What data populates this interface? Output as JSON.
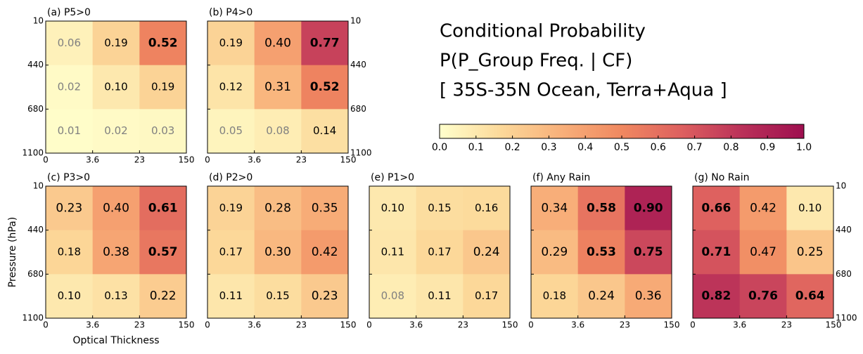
{
  "chart_data": [
    {
      "type": "heatmap",
      "title": "(a) P5>0",
      "xbins": [
        0,
        3.6,
        23,
        150
      ],
      "ybins": [
        10,
        440,
        680,
        1100
      ],
      "ytick_side": "left",
      "values": [
        [
          0.06,
          0.19,
          0.52
        ],
        [
          0.02,
          0.1,
          0.19
        ],
        [
          0.01,
          0.02,
          0.03
        ]
      ],
      "value_labels": [
        [
          "0.06",
          "0.19",
          "0.52"
        ],
        [
          "0.02",
          "0.10",
          "0.19"
        ],
        [
          "0.01",
          "0.02",
          "0.03"
        ]
      ]
    },
    {
      "type": "heatmap",
      "title": "(b) P4>0",
      "xbins": [
        0,
        3.6,
        23,
        150
      ],
      "ybins": [
        10,
        440,
        680,
        1100
      ],
      "ytick_side": "right",
      "values": [
        [
          0.19,
          0.4,
          0.77
        ],
        [
          0.12,
          0.31,
          0.52
        ],
        [
          0.05,
          0.08,
          0.14
        ]
      ],
      "value_labels": [
        [
          "0.19",
          "0.40",
          "0.77"
        ],
        [
          "0.12",
          "0.31",
          "0.52"
        ],
        [
          "0.05",
          "0.08",
          "0.14"
        ]
      ]
    },
    {
      "type": "heatmap",
      "title": "(c) P3>0",
      "xbins": [
        0,
        3.6,
        23,
        150
      ],
      "ybins": [
        10,
        440,
        680,
        1100
      ],
      "ytick_side": "left",
      "xlabel": "Optical Thickness",
      "ylabel": "Pressure (hPa)",
      "values": [
        [
          0.23,
          0.4,
          0.61
        ],
        [
          0.18,
          0.38,
          0.57
        ],
        [
          0.1,
          0.13,
          0.22
        ]
      ],
      "value_labels": [
        [
          "0.23",
          "0.40",
          "0.61"
        ],
        [
          "0.18",
          "0.38",
          "0.57"
        ],
        [
          "0.10",
          "0.13",
          "0.22"
        ]
      ]
    },
    {
      "type": "heatmap",
      "title": "(d) P2>0",
      "xbins": [
        0,
        3.6,
        23,
        150
      ],
      "ybins": [
        10,
        440,
        680,
        1100
      ],
      "ytick_side": "none",
      "values": [
        [
          0.19,
          0.28,
          0.35
        ],
        [
          0.17,
          0.3,
          0.42
        ],
        [
          0.11,
          0.15,
          0.23
        ]
      ],
      "value_labels": [
        [
          "0.19",
          "0.28",
          "0.35"
        ],
        [
          "0.17",
          "0.30",
          "0.42"
        ],
        [
          "0.11",
          "0.15",
          "0.23"
        ]
      ]
    },
    {
      "type": "heatmap",
      "title": "(e) P1>0",
      "xbins": [
        0,
        3.6,
        23,
        150
      ],
      "ybins": [
        10,
        440,
        680,
        1100
      ],
      "ytick_side": "none",
      "values": [
        [
          0.1,
          0.15,
          0.16
        ],
        [
          0.11,
          0.17,
          0.24
        ],
        [
          0.08,
          0.11,
          0.17
        ]
      ],
      "value_labels": [
        [
          "0.10",
          "0.15",
          "0.16"
        ],
        [
          "0.11",
          "0.17",
          "0.24"
        ],
        [
          "0.08",
          "0.11",
          "0.17"
        ]
      ]
    },
    {
      "type": "heatmap",
      "title": "(f) Any Rain",
      "xbins": [
        0,
        3.6,
        23,
        150
      ],
      "ybins": [
        10,
        440,
        680,
        1100
      ],
      "ytick_side": "none",
      "values": [
        [
          0.34,
          0.58,
          0.9
        ],
        [
          0.29,
          0.53,
          0.75
        ],
        [
          0.18,
          0.24,
          0.36
        ]
      ],
      "value_labels": [
        [
          "0.34",
          "0.58",
          "0.90"
        ],
        [
          "0.29",
          "0.53",
          "0.75"
        ],
        [
          "0.18",
          "0.24",
          "0.36"
        ]
      ]
    },
    {
      "type": "heatmap",
      "title": "(g) No Rain",
      "xbins": [
        0,
        3.6,
        23,
        150
      ],
      "ybins": [
        10,
        440,
        680,
        1100
      ],
      "ytick_side": "right",
      "values": [
        [
          0.66,
          0.42,
          0.1
        ],
        [
          0.71,
          0.47,
          0.25
        ],
        [
          0.82,
          0.76,
          0.64
        ]
      ],
      "value_labels": [
        [
          "0.66",
          "0.42",
          "0.10"
        ],
        [
          "0.71",
          "0.47",
          "0.25"
        ],
        [
          "0.82",
          "0.76",
          "0.64"
        ]
      ]
    },
    {
      "type": "colorbar",
      "title_lines": [
        "Conditional Probability",
        "P(P_Group Freq. | CF)",
        "[ 35S-35N Ocean, Terra+Aqua ]"
      ],
      "xlim": [
        0,
        1
      ],
      "colors": [
        "#ffffcc",
        "#fcd99a",
        "#f8b07a",
        "#f08860",
        "#dd5f5f",
        "#b93059",
        "#9e0f4f"
      ],
      "xticks": [
        {
          "value": 0,
          "label": "0.0"
        },
        {
          "value": 0.1,
          "label": "0.1"
        },
        {
          "value": 0.2,
          "label": "0.2"
        },
        {
          "value": 0.3,
          "label": "0.3"
        },
        {
          "value": 0.4,
          "label": "0.4"
        },
        {
          "value": 0.5,
          "label": "0.5"
        },
        {
          "value": 0.6,
          "label": "0.6"
        },
        {
          "value": 0.7,
          "label": "0.7"
        },
        {
          "value": 0.8,
          "label": "0.8"
        },
        {
          "value": 0.9,
          "label": "0.9"
        },
        {
          "value": 1,
          "label": "1.0"
        }
      ]
    }
  ]
}
